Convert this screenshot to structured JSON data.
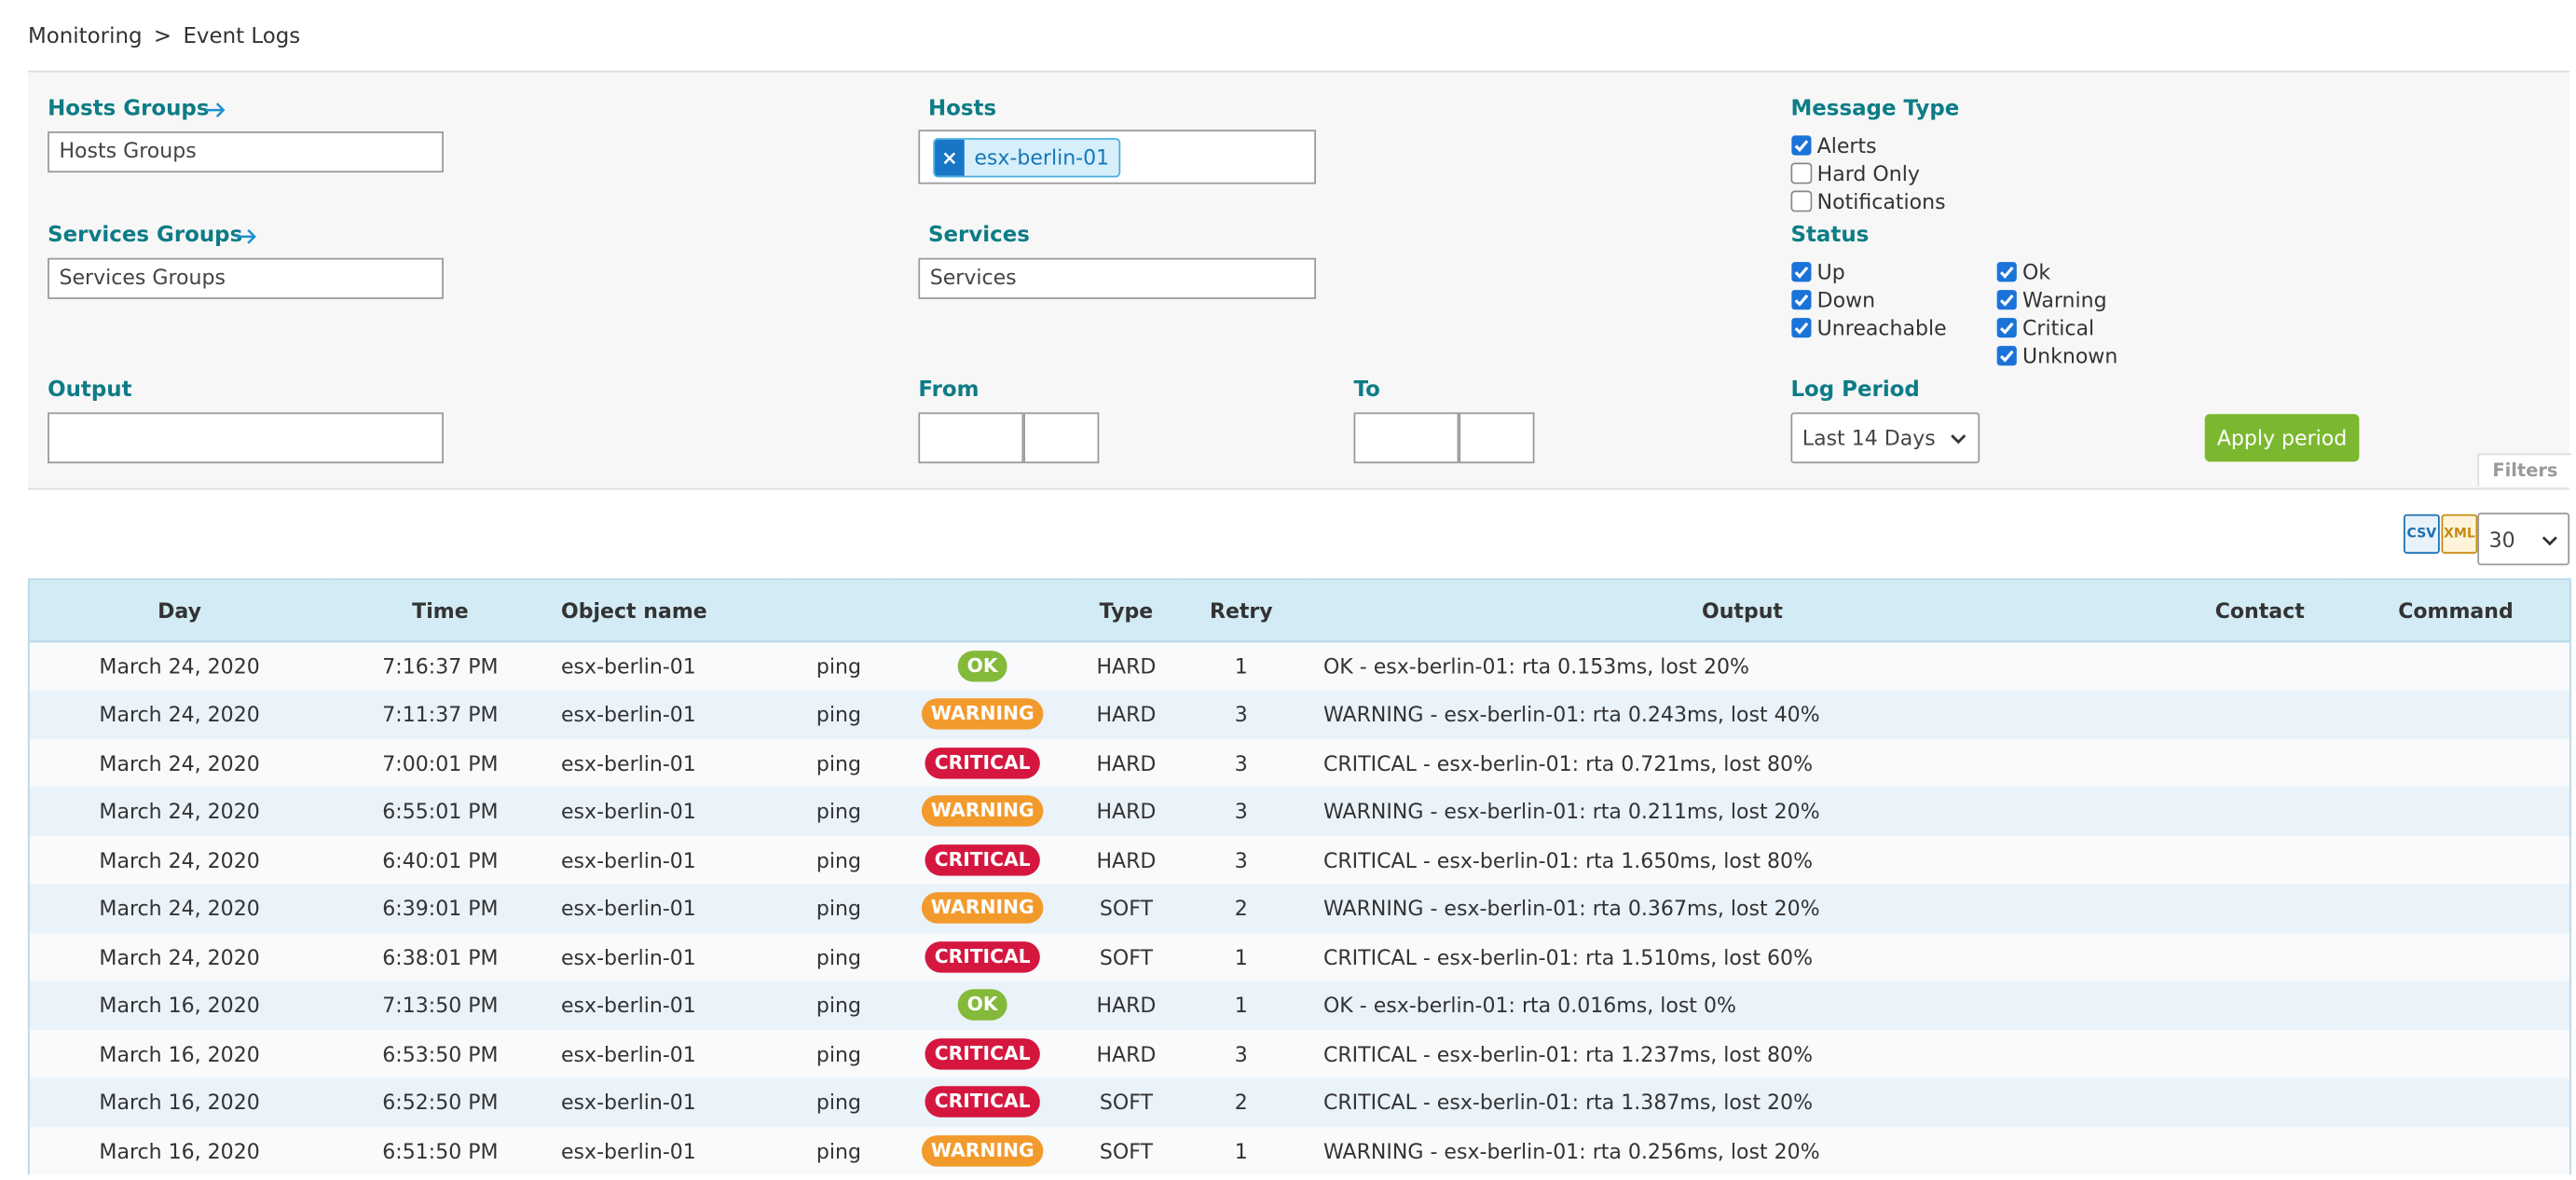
{
  "breadcrumb": {
    "parent": "Monitoring",
    "separator": ">",
    "current": "Event Logs"
  },
  "filters": {
    "hosts_groups": {
      "label": "Hosts Groups",
      "placeholder": "Hosts Groups"
    },
    "hosts": {
      "label": "Hosts",
      "remove": "×",
      "selected": [
        "esx-berlin-01"
      ]
    },
    "message_type": {
      "label": "Message Type",
      "options": [
        {
          "label": "Alerts",
          "checked": true
        },
        {
          "label": "Hard Only",
          "checked": false
        },
        {
          "label": "Notifications",
          "checked": false
        }
      ]
    },
    "services_groups": {
      "label": "Services Groups",
      "placeholder": "Services Groups"
    },
    "services": {
      "label": "Services",
      "placeholder": "Services"
    },
    "status": {
      "label": "Status",
      "host_options": [
        {
          "label": "Up",
          "checked": true
        },
        {
          "label": "Down",
          "checked": true
        },
        {
          "label": "Unreachable",
          "checked": true
        }
      ],
      "service_options": [
        {
          "label": "Ok",
          "checked": true
        },
        {
          "label": "Warning",
          "checked": true
        },
        {
          "label": "Critical",
          "checked": true
        },
        {
          "label": "Unknown",
          "checked": true
        }
      ]
    },
    "output": {
      "label": "Output"
    },
    "from": {
      "label": "From"
    },
    "to": {
      "label": "To"
    },
    "log_period": {
      "label": "Log Period",
      "value": "Last 14 Days"
    },
    "apply": "Apply period",
    "tab": "Filters"
  },
  "export": {
    "csv": "CSV",
    "xml": "XML",
    "page_size": "30"
  },
  "table": {
    "columns": [
      "Day",
      "Time",
      "Object name",
      "Type",
      "Retry",
      "Output",
      "Contact",
      "Command"
    ],
    "status_colors": {
      "OK": "#84b93a",
      "WARNING": "#f39a2c",
      "CRITICAL": "#d5173f"
    },
    "rows": [
      [
        "March 24, 2020",
        "7:16:37 PM",
        "esx-berlin-01",
        "ping",
        "OK",
        "HARD",
        1,
        "OK - esx-berlin-01: rta 0.153ms, lost 20%"
      ],
      [
        "March 24, 2020",
        "7:11:37 PM",
        "esx-berlin-01",
        "ping",
        "WARNING",
        "HARD",
        3,
        "WARNING - esx-berlin-01: rta 0.243ms, lost 40%"
      ],
      [
        "March 24, 2020",
        "7:00:01 PM",
        "esx-berlin-01",
        "ping",
        "CRITICAL",
        "HARD",
        3,
        "CRITICAL - esx-berlin-01: rta 0.721ms, lost 80%"
      ],
      [
        "March 24, 2020",
        "6:55:01 PM",
        "esx-berlin-01",
        "ping",
        "WARNING",
        "HARD",
        3,
        "WARNING - esx-berlin-01: rta 0.211ms, lost 20%"
      ],
      [
        "March 24, 2020",
        "6:40:01 PM",
        "esx-berlin-01",
        "ping",
        "CRITICAL",
        "HARD",
        3,
        "CRITICAL - esx-berlin-01: rta 1.650ms, lost 80%"
      ],
      [
        "March 24, 2020",
        "6:39:01 PM",
        "esx-berlin-01",
        "ping",
        "WARNING",
        "SOFT",
        2,
        "WARNING - esx-berlin-01: rta 0.367ms, lost 20%"
      ],
      [
        "March 24, 2020",
        "6:38:01 PM",
        "esx-berlin-01",
        "ping",
        "CRITICAL",
        "SOFT",
        1,
        "CRITICAL - esx-berlin-01: rta 1.510ms, lost 60%"
      ],
      [
        "March 16, 2020",
        "7:13:50 PM",
        "esx-berlin-01",
        "ping",
        "OK",
        "HARD",
        1,
        "OK - esx-berlin-01: rta 0.016ms, lost 0%"
      ],
      [
        "March 16, 2020",
        "6:53:50 PM",
        "esx-berlin-01",
        "ping",
        "CRITICAL",
        "HARD",
        3,
        "CRITICAL - esx-berlin-01: rta 1.237ms, lost 80%"
      ],
      [
        "March 16, 2020",
        "6:52:50 PM",
        "esx-berlin-01",
        "ping",
        "CRITICAL",
        "SOFT",
        2,
        "CRITICAL - esx-berlin-01: rta 1.387ms, lost 20%"
      ],
      [
        "March 16, 2020",
        "6:51:50 PM",
        "esx-berlin-01",
        "ping",
        "WARNING",
        "SOFT",
        1,
        "WARNING - esx-berlin-01: rta 0.256ms, lost 20%"
      ]
    ]
  }
}
